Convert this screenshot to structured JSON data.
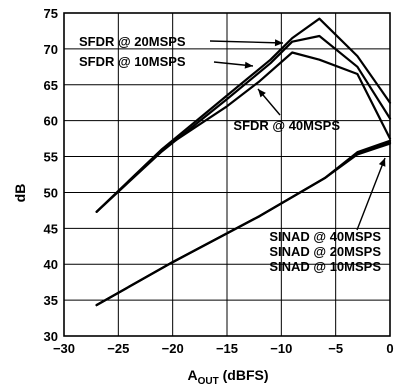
{
  "chart_data": {
    "type": "line",
    "title": "",
    "xlabel_main": "A",
    "xlabel_sub": "OUT",
    "xlabel_rest": " (dBFS)",
    "ylabel": "dB",
    "xlim": [
      -30,
      0
    ],
    "ylim": [
      30,
      75
    ],
    "xticks": [
      -30,
      -25,
      -20,
      -15,
      -10,
      -5,
      0
    ],
    "yticks": [
      30,
      35,
      40,
      45,
      50,
      55,
      60,
      65,
      70,
      75
    ],
    "grid": true,
    "series": [
      {
        "name": "SFDR @ 20MSPS",
        "x": [
          -27,
          -21,
          -15,
          -11,
          -9,
          -6.5,
          -3,
          0
        ],
        "y": [
          47.3,
          56,
          63.5,
          68.5,
          71.5,
          74.2,
          69,
          62.5
        ]
      },
      {
        "name": "SFDR @ 10MSPS",
        "x": [
          -27,
          -21,
          -15,
          -11,
          -9,
          -6.5,
          -3,
          0
        ],
        "y": [
          47.3,
          55.7,
          63,
          68,
          71,
          71.8,
          67.5,
          60.3
        ]
      },
      {
        "name": "SFDR @ 40MSPS",
        "x": [
          -27,
          -21,
          -15,
          -12,
          -9,
          -6.5,
          -3,
          0
        ],
        "y": [
          47.3,
          56,
          62,
          65.5,
          69.5,
          68.5,
          66.5,
          57.5
        ]
      },
      {
        "name": "SINAD @ 40MSPS",
        "x": [
          -27,
          -20,
          -12,
          -6,
          -3,
          0
        ],
        "y": [
          34.3,
          40.3,
          46.7,
          52,
          55.3,
          56.8
        ]
      },
      {
        "name": "SINAD @ 20MSPS",
        "x": [
          -27,
          -20,
          -12,
          -6,
          -3,
          0
        ],
        "y": [
          34.3,
          40.3,
          46.7,
          52,
          55.5,
          57
        ]
      },
      {
        "name": "SINAD @ 10MSPS",
        "x": [
          -27,
          -20,
          -12,
          -6,
          -3,
          0
        ],
        "y": [
          34.3,
          40.3,
          46.7,
          52,
          55.6,
          57.2
        ]
      }
    ],
    "annotations": [
      {
        "text": "SFDR @ 20MSPS",
        "target": 0
      },
      {
        "text": "SFDR @ 10MSPS",
        "target": 1
      },
      {
        "text": "SFDR @ 40MSPS",
        "target": 2
      },
      {
        "text": "SINAD @ 40MSPS",
        "target": 3
      },
      {
        "text": "SINAD @ 20MSPS",
        "target": 4
      },
      {
        "text": "SINAD @ 10MSPS",
        "target": 5
      }
    ]
  }
}
